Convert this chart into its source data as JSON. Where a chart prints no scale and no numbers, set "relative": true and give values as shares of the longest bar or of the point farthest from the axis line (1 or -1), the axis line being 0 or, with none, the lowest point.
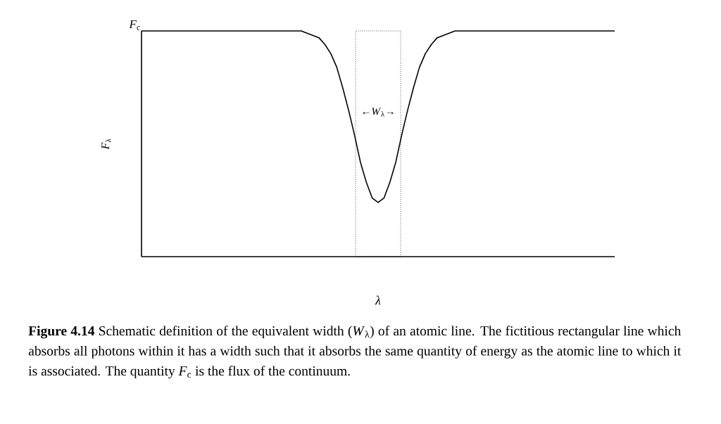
{
  "chart_data": {
    "type": "line",
    "relative": true,
    "xlabel": "*λ*",
    "ylabel": "*F*$_{λ}$",
    "marker": "none",
    "categories": [
      null,
      null,
      null,
      null,
      null,
      null,
      null,
      null,
      null,
      null,
      null,
      null,
      null,
      null,
      null,
      null,
      null,
      null,
      null,
      null,
      null,
      null,
      null,
      null,
      null,
      null,
      null,
      null,
      null,
      null,
      null,
      null,
      null,
      null,
      null,
      null,
      null,
      null,
      null,
      null,
      null,
      null,
      null,
      null,
      null,
      null,
      null,
      null,
      null,
      null,
      null,
      null,
      null,
      null,
      null,
      null,
      null,
      null,
      null,
      null,
      null,
      null,
      null,
      null,
      null,
      null,
      null,
      null,
      null,
      null,
      null,
      null,
      null,
      null,
      null,
      null,
      null,
      null,
      null,
      null,
      null
    ],
    "series": [
      {
        "color": "#000000",
        "line_style": "solid",
        "values": [
          1,
          1,
          1,
          1,
          1,
          1,
          1,
          1,
          1,
          1,
          1,
          1,
          1,
          1,
          1,
          1,
          1,
          1,
          1,
          1,
          1,
          1,
          1,
          1,
          1,
          1,
          1,
          1,
          0.99,
          0.98,
          0.97,
          0.94,
          0.9,
          0.84,
          0.75,
          0.65,
          0.54,
          0.42,
          0.33,
          0.26,
          0.24,
          0.26,
          0.33,
          0.42,
          0.54,
          0.65,
          0.75,
          0.84,
          0.9,
          0.94,
          0.97,
          0.98,
          0.99,
          1,
          1,
          1,
          1,
          1,
          1,
          1,
          1,
          1,
          1,
          1,
          1,
          1,
          1,
          1,
          1,
          1,
          1,
          1,
          1,
          1,
          1,
          1,
          1,
          1,
          1,
          1,
          1
        ]
      }
    ],
    "annotations": [
      "*F*$_{c}$",
      "←*W*$_{λ}$→",
      "**Figure 4.14**   Schematic definition of the equivalent width (*W*$_{λ}$) of an atomic line. The fictitious rectangular line which absorbs all photons within it has a width such that it absorbs the same quantity of energy as the atomic line to which it is associated. The quantity *F*$_{c}$ is the flux of the continuum."
    ]
  }
}
